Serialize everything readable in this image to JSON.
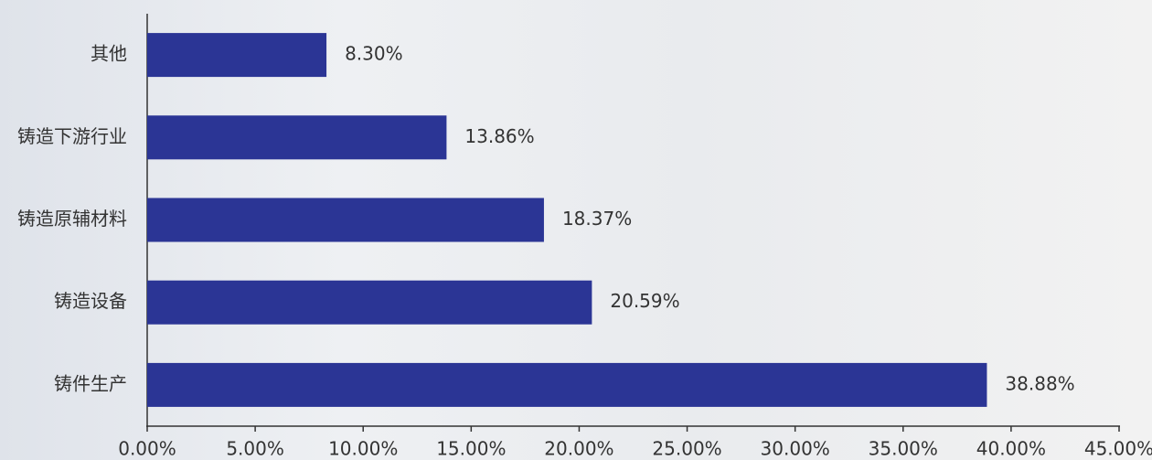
{
  "chart_data": {
    "type": "bar",
    "orientation": "horizontal",
    "categories": [
      "其他",
      "铸造下游行业",
      "铸造原辅材料",
      "铸造设备",
      "铸件生产"
    ],
    "values": [
      8.3,
      13.86,
      18.37,
      20.59,
      38.88
    ],
    "value_labels": [
      "8.30%",
      "13.86%",
      "18.37%",
      "20.59%",
      "38.88%"
    ],
    "color": "#2b3595",
    "xlim": [
      0,
      45
    ],
    "xticks": [
      {
        "value": 0,
        "label": "0.00%"
      },
      {
        "value": 5,
        "label": "5.00%"
      },
      {
        "value": 10,
        "label": "10.00%"
      },
      {
        "value": 15,
        "label": "15.00%"
      },
      {
        "value": 20,
        "label": "20.00%"
      },
      {
        "value": 25,
        "label": "25.00%"
      },
      {
        "value": 30,
        "label": "30.00%"
      },
      {
        "value": 35,
        "label": "35.00%"
      },
      {
        "value": 40,
        "label": "40.00%"
      },
      {
        "value": 45,
        "label": "45.00%"
      }
    ],
    "grid": false
  }
}
